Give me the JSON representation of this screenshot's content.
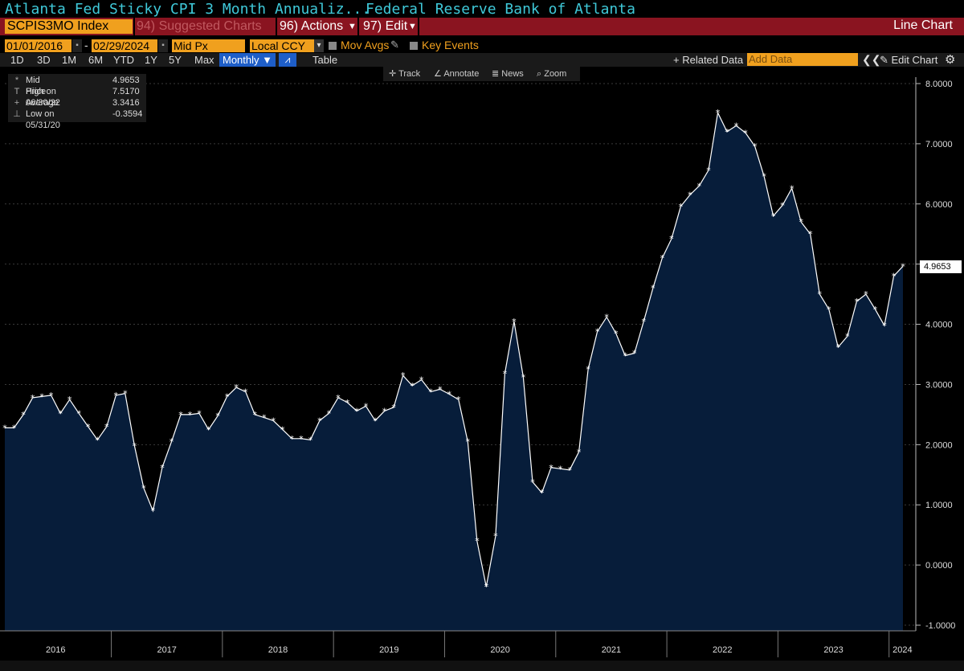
{
  "header": {
    "title": "Atlanta Fed Sticky CPI 3 Month Annualiz...",
    "source": "Federal Reserve Bank of Atlanta"
  },
  "toolbar": {
    "ticker": "SCPIS3MO Index",
    "suggested": "94) Suggested Charts",
    "actions": "96) Actions",
    "edit": "97) Edit",
    "chart_type": "Line Chart",
    "start_date": "01/01/2016",
    "end_date": "02/29/2024",
    "price_field": "Mid Px",
    "currency": "Local CCY",
    "mov_avgs": "Mov Avgs",
    "key_events": "Key Events",
    "ranges": [
      "1D",
      "3D",
      "1M",
      "6M",
      "YTD",
      "1Y",
      "5Y",
      "Max"
    ],
    "period": "Monthly ▼",
    "table": "Table",
    "related_data": "+ Related Data",
    "add_data_placeholder": "Add Data",
    "edit_chart": "Edit Chart",
    "chevrons": "❮❮",
    "gear": "⚙"
  },
  "tools": [
    "Track",
    "Annotate",
    "News",
    "Zoom"
  ],
  "legend": [
    {
      "icon": "*",
      "label": "Mid Price",
      "value": "4.9653"
    },
    {
      "icon": "T",
      "label": "High on 06/30/22",
      "value": "7.5170"
    },
    {
      "icon": "+",
      "label": "Average",
      "value": "3.3416"
    },
    {
      "icon": "⊥",
      "label": "Low on 05/31/20",
      "value": "-0.3594"
    }
  ],
  "last_value": "4.9653",
  "colors": {
    "line": "#ffffff",
    "area": "#071d3a",
    "accent": "#f0a01e",
    "title": "#3fc8d8",
    "bar": "#8a1420"
  },
  "chart_data": {
    "type": "area",
    "x_start": "2016-01",
    "x_end": "2024-02",
    "ylim": [
      -1.0,
      8.0
    ],
    "yticks": [
      "-1.0000",
      "0.0000",
      "1.0000",
      "2.0000",
      "3.0000",
      "4.0000",
      "5.0000",
      "6.0000",
      "7.0000",
      "8.0000"
    ],
    "x_labels": [
      "2016",
      "2017",
      "2018",
      "2019",
      "2020",
      "2021",
      "2022",
      "2023",
      "2024"
    ],
    "series": [
      {
        "name": "Mid Price",
        "values": [
          2.28,
          2.28,
          2.5,
          2.78,
          2.8,
          2.82,
          2.52,
          2.75,
          2.52,
          2.3,
          2.08,
          2.3,
          2.82,
          2.85,
          1.98,
          1.28,
          0.9,
          1.62,
          2.05,
          2.5,
          2.5,
          2.52,
          2.25,
          2.48,
          2.8,
          2.95,
          2.88,
          2.5,
          2.45,
          2.4,
          2.25,
          2.1,
          2.1,
          2.08,
          2.4,
          2.52,
          2.78,
          2.7,
          2.56,
          2.64,
          2.4,
          2.56,
          2.62,
          3.15,
          2.98,
          3.08,
          2.88,
          2.92,
          2.84,
          2.75,
          2.05,
          0.4,
          -0.36,
          0.48,
          3.18,
          4.05,
          3.12,
          1.38,
          1.2,
          1.62,
          1.6,
          1.58,
          1.88,
          3.25,
          3.88,
          4.12,
          3.85,
          3.48,
          3.52,
          4.05,
          4.6,
          5.1,
          5.42,
          5.96,
          6.15,
          6.3,
          6.56,
          7.517,
          7.2,
          7.3,
          7.18,
          6.96,
          6.46,
          5.8,
          5.98,
          6.26,
          5.7,
          5.5,
          4.5,
          4.25,
          3.62,
          3.8,
          4.38,
          4.5,
          4.25,
          3.98,
          4.8,
          4.9653
        ]
      }
    ]
  }
}
